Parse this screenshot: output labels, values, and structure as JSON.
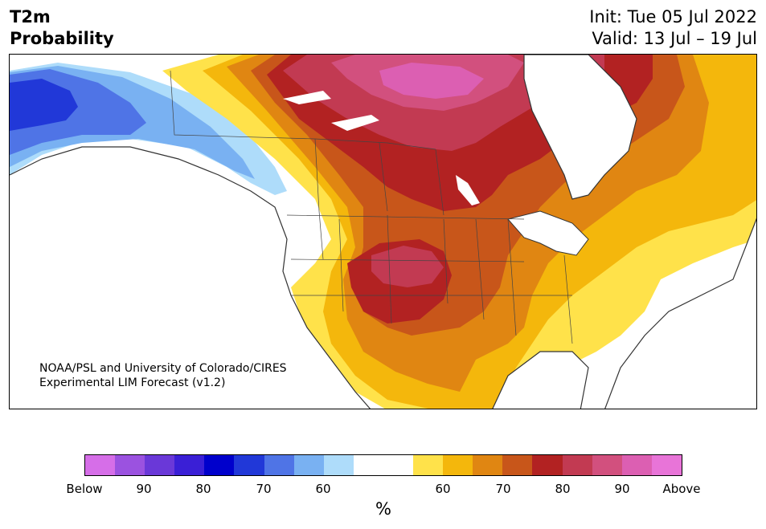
{
  "header": {
    "title_line1": "T2m",
    "title_line2": "Probability",
    "init": "Init: Tue 05 Jul 2022",
    "valid": "Valid: 13 Jul – 19 Jul"
  },
  "map": {
    "credit_line1": "NOAA/PSL and University of Colorado/CIRES",
    "credit_line2": "Experimental LIM Forecast (v1.2)"
  },
  "colorbar": {
    "colors": [
      "#d66ee8",
      "#9b52e0",
      "#6a38d8",
      "#3a1fd6",
      "#0000cc",
      "#2138d8",
      "#4f74e6",
      "#79b1f2",
      "#aedcfa",
      "#ffffff",
      "#ffffff",
      "#ffe24a",
      "#f4b70c",
      "#e08612",
      "#c8561a",
      "#b22222",
      "#c23a52",
      "#d2507e",
      "#dc5fb2",
      "#e874d8"
    ],
    "tick_labels": [
      "Below",
      "90",
      "80",
      "70",
      "60",
      "60",
      "70",
      "80",
      "90",
      "Above"
    ],
    "unit": "%"
  },
  "colors": {
    "land_background": "#ffffff",
    "coastline": "#333333"
  }
}
